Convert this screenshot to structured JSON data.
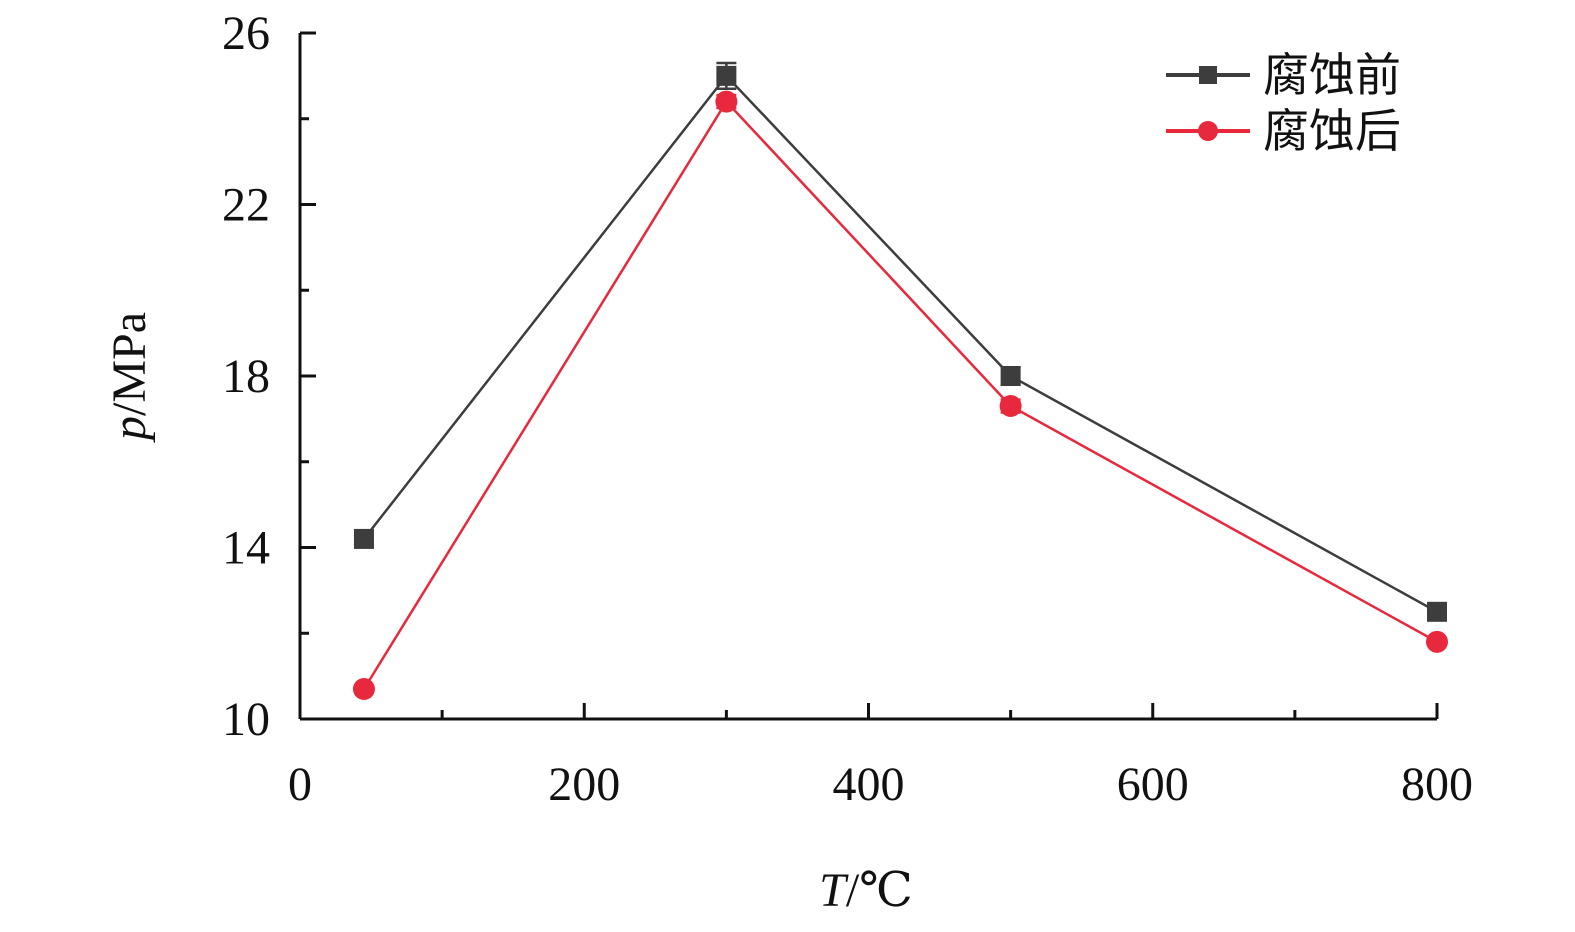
{
  "chart_data": {
    "type": "line",
    "xlabel": {
      "var": "T",
      "unit": "/℃"
    },
    "ylabel": {
      "var": "p",
      "unit": "/MPa"
    },
    "xlim": [
      0,
      800
    ],
    "ylim": [
      10,
      26
    ],
    "xticks": [
      0,
      200,
      400,
      600,
      800
    ],
    "yticks": [
      10,
      14,
      18,
      22,
      26
    ],
    "x_minor_step": 100,
    "y_minor_step": 2,
    "grid": false,
    "legend_position": "top-right",
    "series": [
      {
        "name": "腐蚀前",
        "color": "#3d3d3d",
        "marker": "square",
        "x": [
          45,
          300,
          500,
          800
        ],
        "y": [
          14.2,
          25.0,
          18.0,
          12.5
        ],
        "error": [
          0,
          0.3,
          0.2,
          0
        ]
      },
      {
        "name": "腐蚀后",
        "color": "#e8283c",
        "marker": "circle",
        "x": [
          45,
          300,
          500,
          800
        ],
        "y": [
          10.7,
          24.4,
          17.3,
          11.8
        ],
        "error": [
          0,
          0.15,
          0.15,
          0
        ]
      }
    ]
  }
}
